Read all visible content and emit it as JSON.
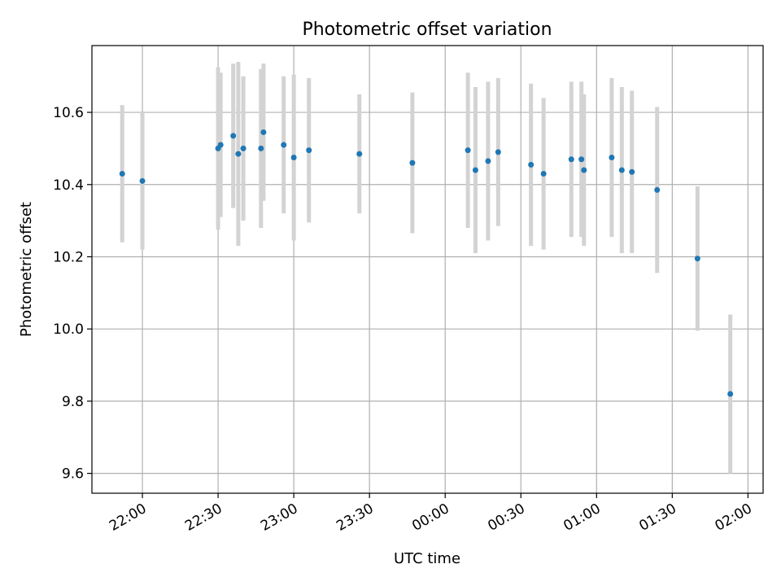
{
  "chart_data": {
    "type": "scatter",
    "title": "Photometric offset variation",
    "xlabel": "UTC time",
    "ylabel": "Photometric offset",
    "x_unit": "UTC time (hh:mm, 21:40 to 02:00)",
    "x_ticks": [
      "22:00",
      "22:30",
      "23:00",
      "23:30",
      "00:00",
      "00:30",
      "01:00",
      "01:30",
      "02:00"
    ],
    "y_ticks": [
      "9.6",
      "9.8",
      "10.0",
      "10.2",
      "10.4",
      "10.6"
    ],
    "xlim": [
      "21:40",
      "02:06"
    ],
    "ylim": [
      9.545,
      10.785
    ],
    "grid": true,
    "errorbar_color": "#d3d3d3",
    "marker_color": "#1f77b4",
    "points": [
      {
        "time": "21:52",
        "y": 10.43,
        "err": 0.19
      },
      {
        "time": "22:00",
        "y": 10.41,
        "err": 0.19
      },
      {
        "time": "22:30",
        "y": 10.5,
        "err": 0.225
      },
      {
        "time": "22:31",
        "y": 10.51,
        "err": 0.2
      },
      {
        "time": "22:36",
        "y": 10.535,
        "err": 0.2
      },
      {
        "time": "22:38",
        "y": 10.485,
        "err": 0.255
      },
      {
        "time": "22:40",
        "y": 10.5,
        "err": 0.2
      },
      {
        "time": "22:47",
        "y": 10.5,
        "err": 0.22
      },
      {
        "time": "22:48",
        "y": 10.545,
        "err": 0.19
      },
      {
        "time": "22:56",
        "y": 10.51,
        "err": 0.19
      },
      {
        "time": "23:00",
        "y": 10.475,
        "err": 0.23
      },
      {
        "time": "23:06",
        "y": 10.495,
        "err": 0.2
      },
      {
        "time": "23:26",
        "y": 10.485,
        "err": 0.165
      },
      {
        "time": "23:47",
        "y": 10.46,
        "err": 0.195
      },
      {
        "time": "00:09",
        "y": 10.495,
        "err": 0.215
      },
      {
        "time": "00:12",
        "y": 10.44,
        "err": 0.23
      },
      {
        "time": "00:17",
        "y": 10.465,
        "err": 0.22
      },
      {
        "time": "00:21",
        "y": 10.49,
        "err": 0.205
      },
      {
        "time": "00:34",
        "y": 10.455,
        "err": 0.225
      },
      {
        "time": "00:39",
        "y": 10.43,
        "err": 0.21
      },
      {
        "time": "00:50",
        "y": 10.47,
        "err": 0.215
      },
      {
        "time": "00:54",
        "y": 10.47,
        "err": 0.215
      },
      {
        "time": "00:55",
        "y": 10.44,
        "err": 0.21
      },
      {
        "time": "01:06",
        "y": 10.475,
        "err": 0.22
      },
      {
        "time": "01:10",
        "y": 10.44,
        "err": 0.23
      },
      {
        "time": "01:14",
        "y": 10.435,
        "err": 0.225
      },
      {
        "time": "01:24",
        "y": 10.385,
        "err": 0.23
      },
      {
        "time": "01:40",
        "y": 10.195,
        "err": 0.2
      },
      {
        "time": "01:53",
        "y": 9.82,
        "err": 0.22
      }
    ]
  }
}
